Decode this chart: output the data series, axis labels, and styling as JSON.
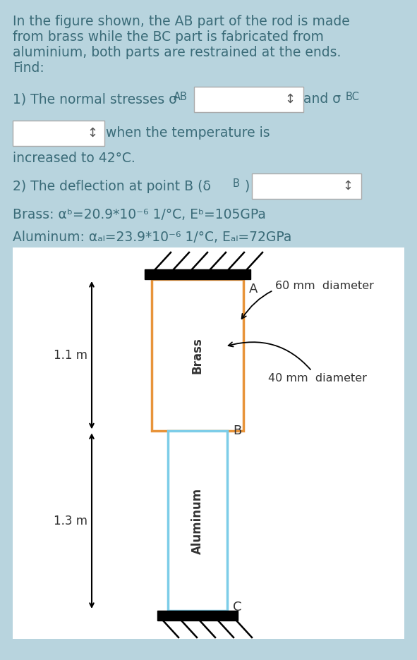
{
  "bg_color": "#b8d4de",
  "text_color": "#3a6b78",
  "brass_color": "#e8943a",
  "al_color": "#7dcde8",
  "dim_color": "#333333",
  "font_size": 13.5,
  "line1": "In the figure shown, the AB part of the rod is made",
  "line2": "from brass while the BC part is fabricated from",
  "line3": "aluminium, both parts are restrained at the ends.",
  "line4": "Find:",
  "q1_prefix": "1) The normal stresses σ",
  "q1_sub": "AB",
  "q1_suffix": "and σ",
  "q1_sub2": "BC",
  "q2_prefix": "2) The deflection at point B (δ",
  "q2_sub": "B",
  "q2_suffix": ")",
  "box2_prefix": "↕  when the temperature is",
  "increased_line": "increased to 42°C.",
  "brass_props": "Brass: αᵇ=20.9*10⁻⁶ 1/°C, Eᵇ=105GPa",
  "al_props": "Aluminum: αₐₗ=23.9*10⁻⁶ 1/°C, Eₐₗ=72GPa",
  "label_60": "60 mm  diameter",
  "label_40": "40 mm  diameter",
  "label_1p1": "1.1 m",
  "label_1p3": "1.3 m",
  "label_A": "A",
  "label_B": "B",
  "label_C": "C",
  "label_brass": "Brass",
  "label_al": "Aluminum"
}
